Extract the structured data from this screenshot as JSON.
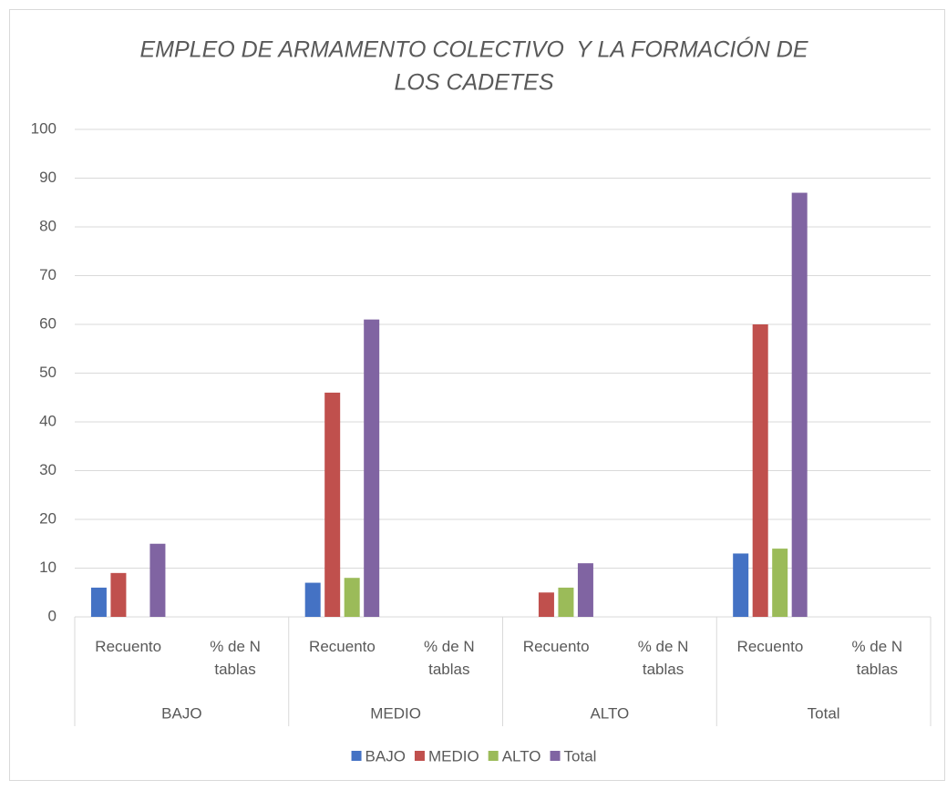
{
  "chart_data": {
    "type": "bar",
    "title": [
      "EMPLEO DE ARMAMENTO COLECTIVO  Y LA FORMACIÓN DE",
      "LOS CADETES"
    ],
    "groups": [
      "BAJO",
      "MEDIO",
      "ALTO",
      "Total"
    ],
    "categories": [
      "Recuento",
      "% de N tablas",
      "Recuento",
      "% de N tablas",
      "Recuento",
      "% de N tablas",
      "Recuento",
      "% de N tablas"
    ],
    "series": [
      {
        "name": "BAJO",
        "color": "#4472c4",
        "values": [
          6,
          null,
          7,
          null,
          null,
          null,
          13,
          null
        ]
      },
      {
        "name": "MEDIO",
        "color": "#c0504d",
        "values": [
          9,
          null,
          46,
          null,
          5,
          null,
          60,
          null
        ]
      },
      {
        "name": "ALTO",
        "color": "#9bbb59",
        "values": [
          null,
          null,
          8,
          null,
          6,
          null,
          14,
          null
        ]
      },
      {
        "name": "Total",
        "color": "#8064a2",
        "values": [
          15,
          null,
          61,
          null,
          11,
          null,
          87,
          null
        ]
      }
    ],
    "ylim": [
      0,
      100
    ],
    "yticks": [
      0,
      10,
      20,
      30,
      40,
      50,
      60,
      70,
      80,
      90,
      100
    ],
    "grid": true,
    "legend": "bottom"
  }
}
